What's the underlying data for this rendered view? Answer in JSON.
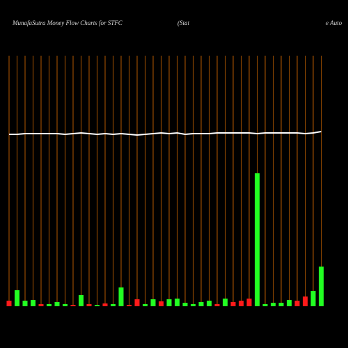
{
  "chart_data": {
    "type": "bar",
    "title": "MunafaSutra  Money Flow  Charts for STFC",
    "subtitle": "(Stat",
    "subtitle_tail": "e   Auto",
    "categories": [
      null,
      null,
      null,
      null,
      null,
      null,
      null,
      null,
      null,
      null,
      null,
      null,
      null,
      null,
      null,
      null,
      null,
      null,
      null,
      null,
      null,
      null,
      null,
      null,
      null,
      null,
      null,
      null,
      null,
      null,
      null,
      null,
      null,
      null,
      null,
      null,
      null,
      null,
      null,
      null
    ],
    "values": [
      8,
      23,
      8,
      9,
      3,
      3,
      6,
      3,
      2,
      16,
      3,
      2,
      4,
      3,
      27,
      2,
      10,
      3,
      10,
      7,
      10,
      11,
      5,
      3,
      6,
      8,
      3,
      11,
      6,
      8,
      11,
      191,
      3,
      5,
      5,
      9,
      8,
      14,
      22,
      57
    ],
    "bar_colors": [
      "#ff1a1a",
      "#22ff22",
      "#22ff22",
      "#22ff22",
      "#ff1a1a",
      "#22ff22",
      "#22ff22",
      "#22ff22",
      "#ff1a1a",
      "#22ff22",
      "#ff1a1a",
      "#22ff22",
      "#ff1a1a",
      "#22ff22",
      "#22ff22",
      "#ff1a1a",
      "#ff1a1a",
      "#22ff22",
      "#22ff22",
      "#ff1a1a",
      "#22ff22",
      "#22ff22",
      "#22ff22",
      "#22ff22",
      "#22ff22",
      "#22ff22",
      "#ff1a1a",
      "#22ff22",
      "#ff1a1a",
      "#ff1a1a",
      "#ff1a1a",
      "#22ff22",
      "#22ff22",
      "#22ff22",
      "#22ff22",
      "#22ff22",
      "#ff1a1a",
      "#ff1a1a",
      "#22ff22",
      "#22ff22"
    ],
    "line": {
      "color": "#ffffff",
      "values": [
        247,
        247,
        248,
        248,
        248,
        248,
        248,
        247,
        248,
        249,
        248,
        247,
        248,
        247,
        248,
        247,
        246,
        247,
        248,
        249,
        248,
        249,
        247,
        248,
        248,
        248,
        249,
        249,
        249,
        249,
        249,
        248,
        249,
        249,
        249,
        249,
        249,
        248,
        249,
        251
      ]
    },
    "gridline_color": "#b35900"
  }
}
